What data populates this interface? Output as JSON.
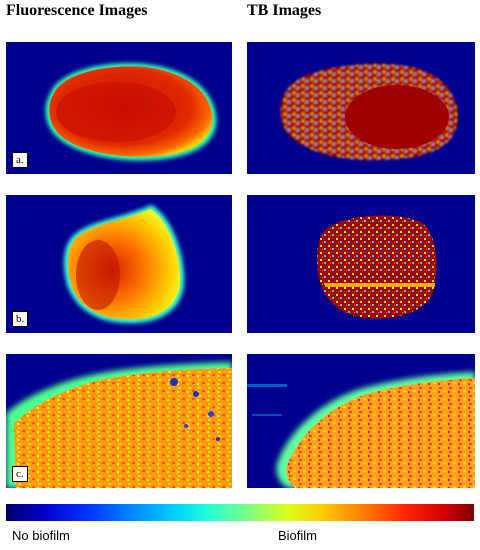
{
  "headers": {
    "fluorescence": "Fluorescence Images",
    "tb": "TB Images"
  },
  "rows": [
    {
      "label": "a."
    },
    {
      "label": "b."
    },
    {
      "label": "c."
    }
  ],
  "colorbar": {
    "left_label": "No biofilm",
    "right_label": "Biofilm",
    "low_color": "#00008e",
    "high_color": "#800000"
  }
}
